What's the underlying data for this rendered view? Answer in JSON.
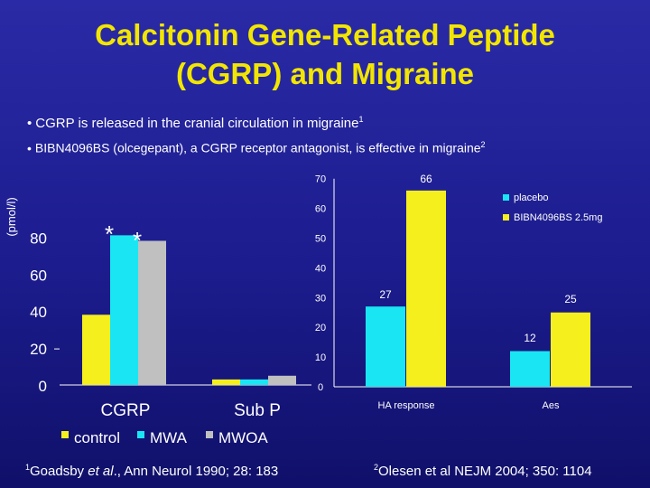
{
  "slide": {
    "title_line1": "Calcitonin Gene-Related Peptide",
    "title_line2": "(CGRP) and Migraine",
    "bullet1_dot": "•",
    "bullet1_text": "CGRP is released in the cranial circulation in migraine",
    "bullet1_sup": "1",
    "bullet2_dot": "•",
    "bullet2_text": "BIBN4096BS (olcegepant), a CGRP receptor antagonist, is effective in migraine",
    "bullet2_sup": "2",
    "ref1_sup": "1",
    "ref1_a": "Goadsby ",
    "ref1_italic": "et al",
    "ref1_b": "., Ann Neurol 1990; 28: 183",
    "ref2_sup": "2",
    "ref2_text": "Olesen et al NEJM 2004; 350: 1104"
  },
  "colors": {
    "title": "#f2e600",
    "control": "#f5ef1e",
    "mwa": "#19e6f2",
    "mwoa": "#c0c0c0",
    "placebo": "#19e6f2",
    "bibn": "#f5ef1e"
  },
  "chart_data": [
    {
      "type": "bar",
      "ylabel": "(pmol/l)",
      "yticks": [
        0,
        20,
        40,
        60,
        80
      ],
      "ylim": [
        0,
        80
      ],
      "categories": [
        "CGRP",
        "Sub P"
      ],
      "series": [
        {
          "name": "control",
          "values": [
            38,
            3
          ]
        },
        {
          "name": "MWA",
          "values": [
            81,
            3
          ]
        },
        {
          "name": "MWOA",
          "values": [
            78,
            5
          ]
        }
      ],
      "annotations": [
        "*",
        "*"
      ],
      "legend": "bottom"
    },
    {
      "type": "bar",
      "yticks": [
        0,
        10,
        20,
        30,
        40,
        50,
        60,
        70
      ],
      "ylim": [
        0,
        70
      ],
      "categories": [
        "HA response",
        "Aes"
      ],
      "series": [
        {
          "name": "placebo",
          "values": [
            27,
            12
          ]
        },
        {
          "name": "BIBN4096BS 2.5mg",
          "values": [
            66,
            25
          ]
        }
      ],
      "data_labels": [
        [
          "27",
          "12"
        ],
        [
          "66",
          "25"
        ]
      ],
      "legend": "top-right"
    }
  ]
}
